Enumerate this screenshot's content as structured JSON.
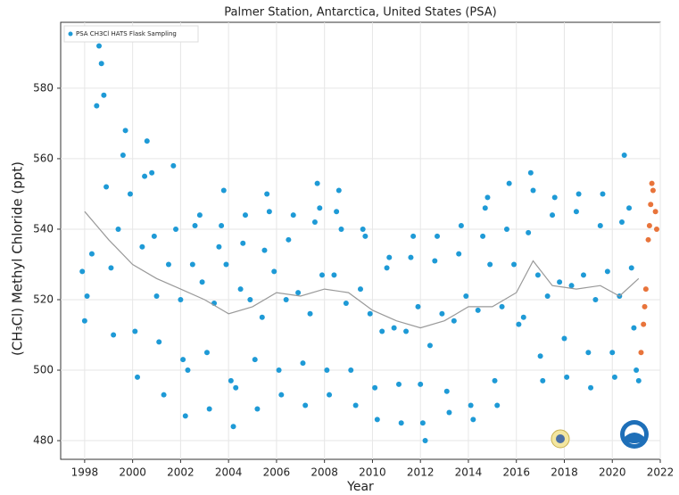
{
  "chart_data": {
    "type": "scatter",
    "title": "Palmer Station, Antarctica, United States (PSA)",
    "x_label": "Year",
    "y_label": "(CH₃Cl) Methyl Chloride (ppt)",
    "xlim": [
      1997,
      2022
    ],
    "ylim": [
      474.7,
      598.7
    ],
    "xticks": [
      1998,
      2000,
      2002,
      2004,
      2006,
      2008,
      2010,
      2012,
      2014,
      2016,
      2018,
      2020,
      2022
    ],
    "yticks": [
      480,
      500,
      520,
      540,
      560,
      580
    ],
    "grid": true,
    "legend": "upper left",
    "series": [
      {
        "name": "PSA CH3Cl HATS Flask Sampling",
        "color": "#1e9ad6",
        "x": [
          1997.9,
          1998.0,
          1998.1,
          1998.3,
          1998.5,
          1998.6,
          1998.7,
          1998.8,
          1998.9,
          1999.1,
          1999.2,
          1999.4,
          1999.6,
          1999.7,
          1999.9,
          2000.1,
          2000.2,
          2000.4,
          2000.5,
          2000.6,
          2000.8,
          2000.9,
          2001.0,
          2001.1,
          2001.3,
          2001.5,
          2001.7,
          2001.8,
          2002.0,
          2002.1,
          2002.2,
          2002.3,
          2002.5,
          2002.6,
          2002.8,
          2002.9,
          2003.1,
          2003.2,
          2003.4,
          2003.6,
          2003.7,
          2003.8,
          2003.9,
          2004.1,
          2004.2,
          2004.3,
          2004.5,
          2004.6,
          2004.7,
          2004.9,
          2005.1,
          2005.2,
          2005.4,
          2005.5,
          2005.6,
          2005.7,
          2005.9,
          2006.1,
          2006.2,
          2006.4,
          2006.5,
          2006.7,
          2006.9,
          2007.1,
          2007.2,
          2007.4,
          2007.6,
          2007.7,
          2007.8,
          2007.9,
          2008.1,
          2008.2,
          2008.4,
          2008.5,
          2008.6,
          2008.7,
          2008.9,
          2009.1,
          2009.3,
          2009.5,
          2009.6,
          2009.7,
          2009.9,
          2010.1,
          2010.2,
          2010.4,
          2010.6,
          2010.7,
          2010.9,
          2011.1,
          2011.2,
          2011.4,
          2011.6,
          2011.7,
          2011.9,
          2012.0,
          2012.1,
          2012.2,
          2012.4,
          2012.6,
          2012.7,
          2012.9,
          2013.1,
          2013.2,
          2013.4,
          2013.6,
          2013.7,
          2013.9,
          2014.1,
          2014.2,
          2014.4,
          2014.6,
          2014.7,
          2014.8,
          2014.9,
          2015.1,
          2015.2,
          2015.4,
          2015.6,
          2015.7,
          2015.9,
          2016.1,
          2016.3,
          2016.5,
          2016.6,
          2016.7,
          2016.9,
          2017.0,
          2017.1,
          2017.3,
          2017.5,
          2017.6,
          2017.8,
          2018.0,
          2018.1,
          2018.3,
          2018.5,
          2018.6,
          2018.8,
          2019.0,
          2019.1,
          2019.3,
          2019.5,
          2019.6,
          2019.8,
          2020.0,
          2020.1,
          2020.3,
          2020.4,
          2020.5,
          2020.7,
          2020.8,
          2020.9,
          2021.0,
          2021.1
        ],
        "values": [
          528,
          514,
          521,
          533,
          575,
          592,
          587,
          578,
          552,
          529,
          510,
          540,
          561,
          568,
          550,
          511,
          498,
          535,
          555,
          565,
          556,
          538,
          521,
          508,
          493,
          530,
          558,
          540,
          520,
          503,
          487,
          500,
          530,
          541,
          544,
          525,
          505,
          489,
          519,
          535,
          541,
          551,
          530,
          497,
          484,
          495,
          523,
          536,
          544,
          520,
          503,
          489,
          515,
          534,
          550,
          545,
          528,
          500,
          493,
          520,
          537,
          544,
          522,
          502,
          490,
          516,
          542,
          553,
          546,
          527,
          500,
          493,
          527,
          545,
          551,
          540,
          519,
          500,
          490,
          523,
          540,
          538,
          516,
          495,
          486,
          511,
          529,
          532,
          512,
          496,
          485,
          511,
          532,
          538,
          518,
          496,
          485,
          480,
          507,
          531,
          538,
          516,
          494,
          488,
          514,
          533,
          541,
          521,
          490,
          486,
          517,
          538,
          546,
          549,
          530,
          497,
          490,
          518,
          540,
          553,
          530,
          513,
          515,
          539,
          556,
          551,
          527,
          504,
          497,
          521,
          544,
          549,
          525,
          509,
          498,
          524,
          545,
          550,
          527,
          505,
          495,
          520,
          541,
          550,
          528,
          505,
          498,
          521,
          542,
          561,
          546,
          529,
          512,
          500,
          497
        ]
      },
      {
        "color": "#e8743b",
        "x": [
          2021.2,
          2021.3,
          2021.35,
          2021.4,
          2021.5,
          2021.55,
          2021.6,
          2021.65,
          2021.7,
          2021.8,
          2021.85
        ],
        "values": [
          505,
          513,
          518,
          523,
          537,
          541,
          547,
          553,
          551,
          545,
          540
        ]
      },
      {
        "type": "line",
        "color": "#999999",
        "x": [
          1998,
          1999,
          2000,
          2001,
          2002,
          2003,
          2004,
          2005,
          2006,
          2007,
          2008,
          2009,
          2010,
          2011,
          2012,
          2013,
          2014,
          2015,
          2016,
          2016.7,
          2017.5,
          2018.5,
          2019.5,
          2020.3,
          2021.1
        ],
        "values": [
          545,
          537,
          530,
          526,
          523,
          520,
          516,
          518,
          522,
          521,
          523,
          522,
          517,
          514,
          512,
          514,
          518,
          518,
          522,
          531,
          524,
          523,
          524,
          521,
          526
        ]
      }
    ]
  }
}
